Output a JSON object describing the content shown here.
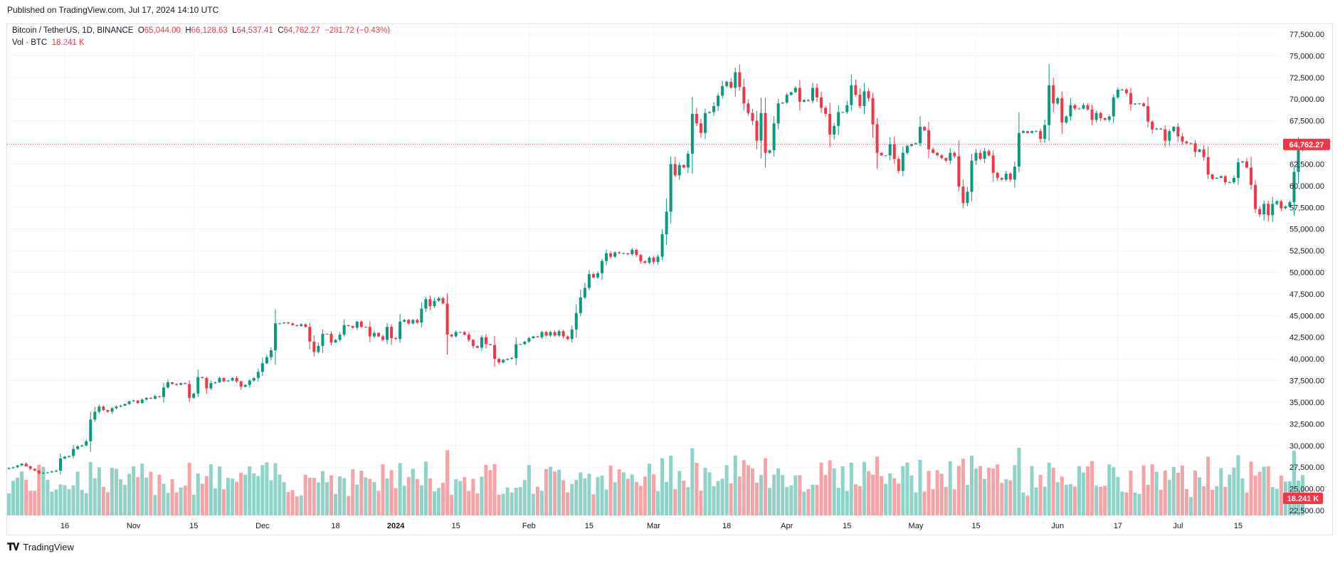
{
  "header": {
    "publish_text": "Published on TradingView.com, Jul 17, 2024 14:10 UTC"
  },
  "legend": {
    "symbol": "Bitcoin / TetherUS, 1D, BINANCE",
    "open_label": "O",
    "open": "65,044.00",
    "high_label": "H",
    "high": "66,128.63",
    "low_label": "L",
    "low": "64,537.41",
    "close_label": "C",
    "close": "64,762.27",
    "change": "−281.72 (−0.43%)",
    "volume_label": "Vol · BTC",
    "volume_value": "18.241 K"
  },
  "footer": {
    "brand": "TradingView"
  },
  "colors": {
    "up": "#089981",
    "down": "#f23645",
    "vol_up": "#8fd3c8",
    "vol_down": "#f5a3a7",
    "grid": "#f0f3fa"
  },
  "chart_data": {
    "type": "candlestick",
    "ylim": [
      22500,
      77500
    ],
    "price_ticks": [
      "22,500.00",
      "25,000.00",
      "27,500.00",
      "30,000.00",
      "32,500.00",
      "35,000.00",
      "37,500.00",
      "40,000.00",
      "42,500.00",
      "45,000.00",
      "47,500.00",
      "50,000.00",
      "52,500.00",
      "55,000.00",
      "57,500.00",
      "60,000.00",
      "62,500.00",
      "65,000.00",
      "67,500.00",
      "70,000.00",
      "72,500.00",
      "75,000.00",
      "77,500.00"
    ],
    "last_price_label": "64,762.27",
    "last_price": 64762.27,
    "volume_label": "18.241 K",
    "x_ticks": [
      {
        "label": "16",
        "bold": false,
        "date": "2023-10-16"
      },
      {
        "label": "Nov",
        "bold": false,
        "date": "2023-11-01"
      },
      {
        "label": "15",
        "bold": false,
        "date": "2023-11-15"
      },
      {
        "label": "Dec",
        "bold": false,
        "date": "2023-12-01"
      },
      {
        "label": "18",
        "bold": false,
        "date": "2023-12-18"
      },
      {
        "label": "2024",
        "bold": true,
        "date": "2024-01-01"
      },
      {
        "label": "15",
        "bold": false,
        "date": "2024-01-15"
      },
      {
        "label": "Feb",
        "bold": false,
        "date": "2024-02-01"
      },
      {
        "label": "15",
        "bold": false,
        "date": "2024-02-15"
      },
      {
        "label": "Mar",
        "bold": false,
        "date": "2024-03-01"
      },
      {
        "label": "18",
        "bold": false,
        "date": "2024-03-18"
      },
      {
        "label": "Apr",
        "bold": false,
        "date": "2024-04-01"
      },
      {
        "label": "15",
        "bold": false,
        "date": "2024-04-15"
      },
      {
        "label": "May",
        "bold": false,
        "date": "2024-05-01"
      },
      {
        "label": "15",
        "bold": false,
        "date": "2024-05-15"
      },
      {
        "label": "Jun",
        "bold": false,
        "date": "2024-06-03"
      },
      {
        "label": "17",
        "bold": false,
        "date": "2024-06-17"
      },
      {
        "label": "Jul",
        "bold": false,
        "date": "2024-07-01"
      },
      {
        "label": "15",
        "bold": false,
        "date": "2024-07-15"
      }
    ],
    "start_date": "2023-10-03",
    "closes": [
      27400,
      27500,
      27700,
      27900,
      27600,
      27300,
      27100,
      26800,
      26850,
      26900,
      27000,
      27100,
      28500,
      28700,
      28800,
      29600,
      29900,
      30000,
      30500,
      33000,
      33900,
      34500,
      34100,
      33900,
      34300,
      34500,
      34600,
      34800,
      35100,
      35200,
      34900,
      35300,
      35500,
      35400,
      35700,
      35600,
      36700,
      37300,
      37100,
      37000,
      37200,
      37100,
      35500,
      36000,
      37900,
      37800,
      36600,
      37200,
      37300,
      37800,
      37400,
      37500,
      37800,
      37400,
      36800,
      37000,
      37500,
      37800,
      38500,
      39500,
      40200,
      41000,
      44100,
      44100,
      44200,
      44100,
      43900,
      43800,
      44000,
      43700,
      42000,
      40800,
      41500,
      42900,
      42900,
      41900,
      42200,
      42800,
      43900,
      43800,
      43600,
      44300,
      43700,
      43700,
      42600,
      43000,
      42600,
      42200,
      43700,
      42400,
      42300,
      44300,
      44500,
      44100,
      44500,
      44200,
      45800,
      46900,
      46100,
      46700,
      47000,
      46400,
      42800,
      42600,
      43100,
      43100,
      42800,
      42200,
      41500,
      41300,
      42500,
      41700,
      41600,
      40000,
      39600,
      39900,
      40000,
      40100,
      41700,
      41700,
      42000,
      42400,
      42600,
      42500,
      43100,
      42700,
      43100,
      42700,
      43200,
      42600,
      42300,
      43400,
      45300,
      47100,
      48200,
      49800,
      49400,
      49900,
      51300,
      52200,
      51800,
      52300,
      52200,
      52200,
      52100,
      52600,
      52000,
      51300,
      51100,
      51700,
      51200,
      51800,
      54400,
      57000,
      62500,
      61200,
      62400,
      62100,
      63700,
      68300,
      67200,
      66100,
      68400,
      68500,
      69200,
      70400,
      71500,
      72000,
      71300,
      73100,
      71400,
      69500,
      68400,
      67500,
      65200,
      68400,
      63800,
      64100,
      67200,
      69500,
      69600,
      70500,
      70800,
      71300,
      69700,
      69900,
      69800,
      71300,
      70200,
      69000,
      68300,
      65900,
      66900,
      68500,
      68500,
      69300,
      71600,
      70500,
      69200,
      70900,
      70100,
      67100,
      63800,
      63500,
      63500,
      64800,
      63100,
      61700,
      63800,
      64600,
      64800,
      64900,
      66800,
      66400,
      64200,
      63800,
      63500,
      63200,
      62900,
      63800,
      63400,
      59900,
      58000,
      59300,
      62900,
      63800,
      63100,
      64000,
      63500,
      61500,
      60900,
      60700,
      61400,
      60700,
      62200,
      66100,
      66300,
      66100,
      66300,
      66300,
      65400,
      67000,
      71600,
      69500,
      70100,
      67300,
      68000,
      69300,
      68900,
      68900,
      69300,
      68800,
      67600,
      68400,
      67800,
      67600,
      68000,
      70200,
      71100,
      71100,
      70700,
      69400,
      69500,
      69500,
      69200,
      67400,
      66500,
      66600,
      66500,
      65200,
      66300,
      66800,
      65700,
      65100,
      64900,
      64900,
      63900,
      64200,
      63300,
      61300,
      60800,
      60900,
      61100,
      60400,
      60400,
      60900,
      62700,
      62800,
      62100,
      60100,
      57300,
      56700,
      57900,
      56600,
      57900,
      58200,
      57400,
      57600,
      58100,
      61600,
      64100,
      64700
    ]
  }
}
